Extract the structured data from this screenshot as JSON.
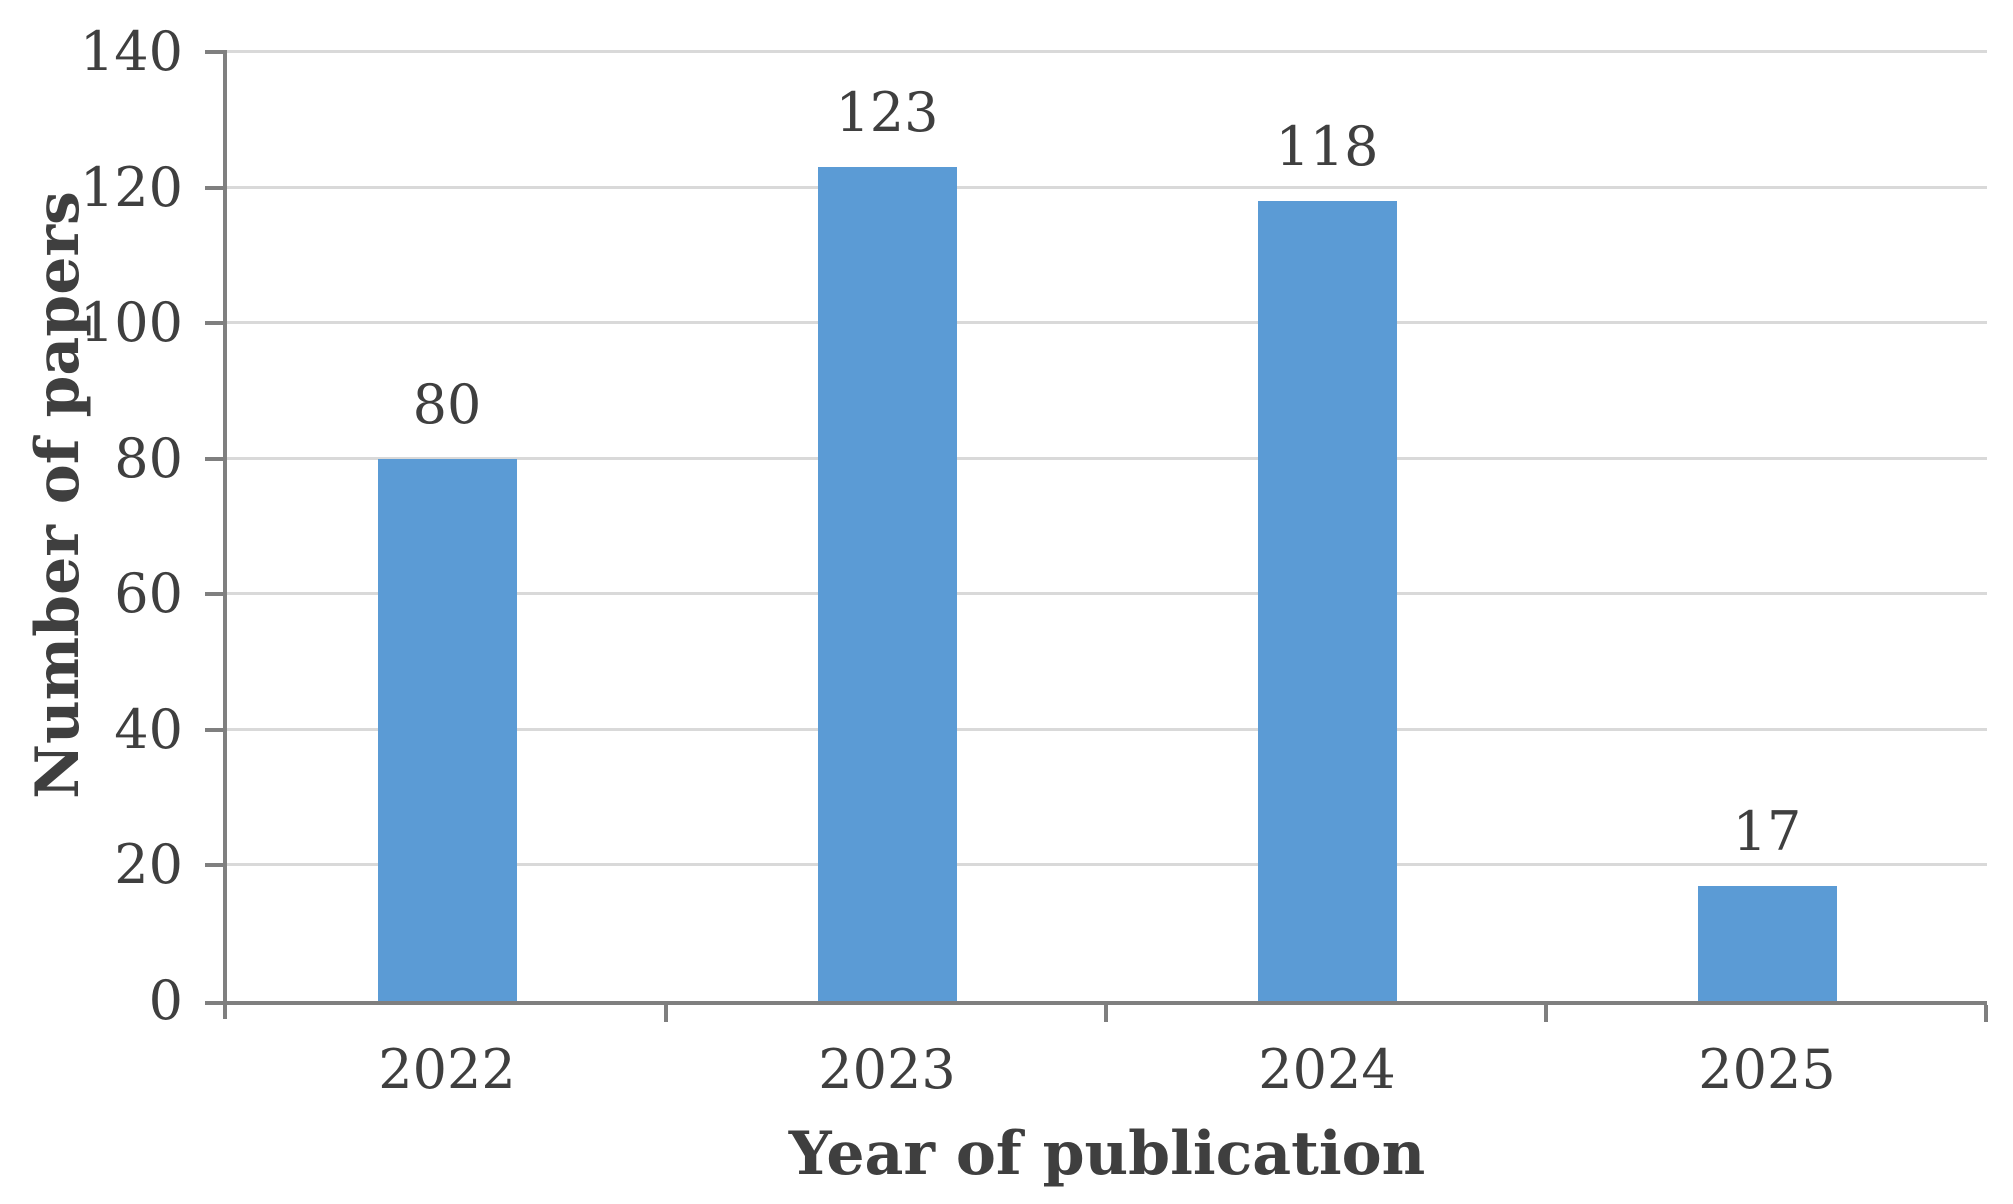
{
  "chart_data": {
    "type": "bar",
    "title": "",
    "categories": [
      "2022",
      "2023",
      "2024",
      "2025"
    ],
    "values": [
      80,
      123,
      118,
      17
    ],
    "data_labels": [
      "80",
      "123",
      "118",
      "17"
    ],
    "xlabel": "Year of publication",
    "ylabel": "Number of papers",
    "ylim": [
      0,
      140
    ],
    "ytick_step": 20,
    "yticks": [
      "0",
      "20",
      "40",
      "60",
      "80",
      "100",
      "120",
      "140"
    ],
    "grid": "horizontal-only",
    "legend": "none",
    "colors": {
      "bar": "#5B9BD5",
      "gridline": "#D9D9D9",
      "axis": "#7F7F7F",
      "text": "#3F3F3F",
      "background": "#FFFFFF"
    }
  }
}
